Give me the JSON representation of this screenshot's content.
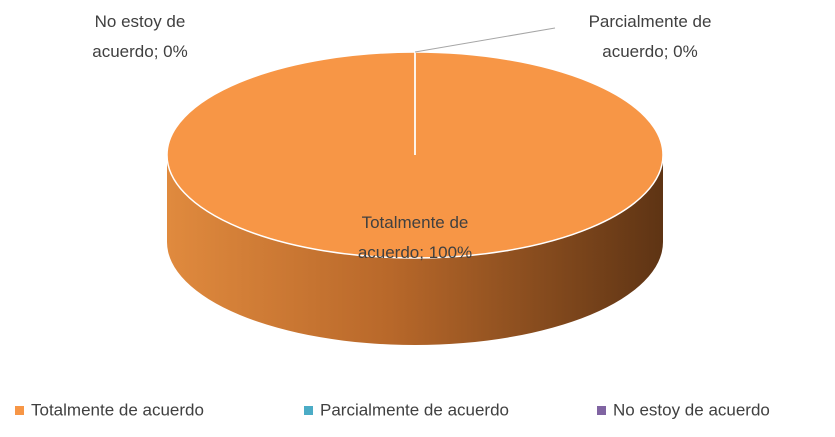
{
  "chart_data": {
    "type": "pie",
    "categories": [
      "Totalmente de acuerdo",
      "Parcialmente de acuerdo",
      "No estoy de acuerdo"
    ],
    "values": [
      100,
      0,
      0
    ],
    "value_labels": [
      "Totalmente de acuerdo; 100%",
      "Parcialmente de acuerdo; 0%",
      "No estoy de acuerdo; 0%"
    ],
    "colors": [
      "#f79646",
      "#4bacc6",
      "#8064a2"
    ],
    "legend": "bottom"
  }
}
